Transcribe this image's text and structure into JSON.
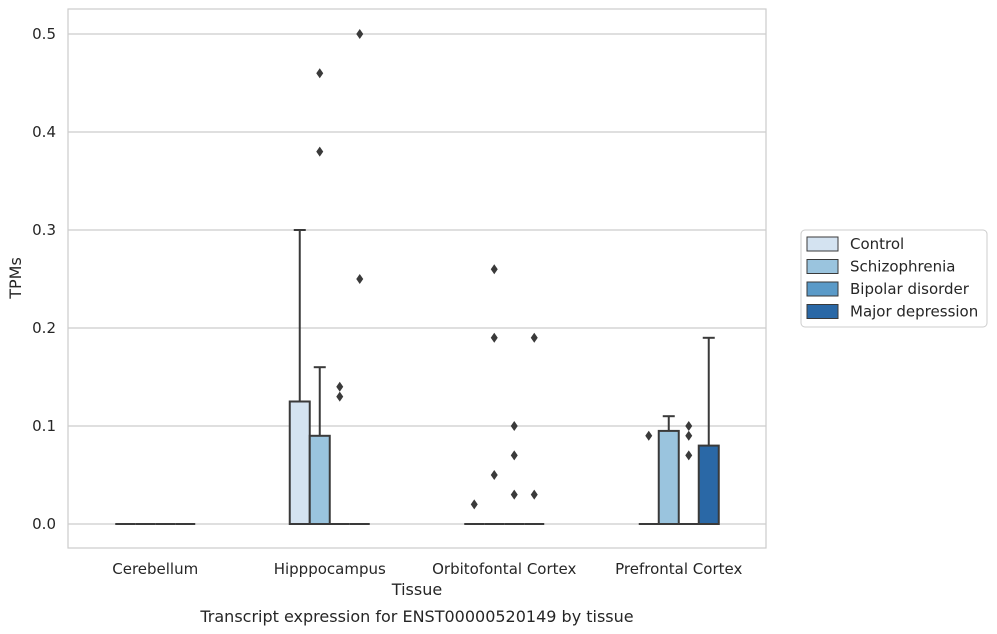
{
  "chart_data": {
    "type": "box",
    "caption": "Transcript expression for ENST00000520149 by tissue",
    "xlabel": "Tissue",
    "ylabel": "TPMs",
    "ylim": [
      -0.025,
      0.525
    ],
    "yticks": [
      0.0,
      0.1,
      0.2,
      0.3,
      0.4,
      0.5
    ],
    "ytick_labels": [
      "0.0",
      "0.1",
      "0.2",
      "0.3",
      "0.4",
      "0.5"
    ],
    "grid": "horizontal",
    "legend_position": "right",
    "categories": [
      "Cerebellum",
      "Hipppocampus",
      "Orbitofontal Cortex",
      "Prefrontal Cortex"
    ],
    "series": [
      {
        "name": "Control",
        "color": "#d4e3f1",
        "boxes": [
          {
            "q1": 0,
            "median": 0,
            "q3": 0,
            "whisker_low": 0,
            "whisker_high": 0,
            "outliers": []
          },
          {
            "q1": 0,
            "median": 0,
            "q3": 0.125,
            "whisker_low": 0,
            "whisker_high": 0.3,
            "outliers": []
          },
          {
            "q1": 0,
            "median": 0,
            "q3": 0,
            "whisker_low": 0,
            "whisker_high": 0,
            "outliers": [
              0.02
            ]
          },
          {
            "q1": 0,
            "median": 0,
            "q3": 0,
            "whisker_low": 0,
            "whisker_high": 0,
            "outliers": [
              0.09
            ]
          }
        ]
      },
      {
        "name": "Schizophrenia",
        "color": "#9ac4de",
        "boxes": [
          {
            "q1": 0,
            "median": 0,
            "q3": 0,
            "whisker_low": 0,
            "whisker_high": 0,
            "outliers": []
          },
          {
            "q1": 0,
            "median": 0,
            "q3": 0.09,
            "whisker_low": 0,
            "whisker_high": 0.16,
            "outliers": [
              0.46,
              0.38
            ]
          },
          {
            "q1": 0,
            "median": 0,
            "q3": 0,
            "whisker_low": 0,
            "whisker_high": 0,
            "outliers": [
              0.26,
              0.19,
              0.05
            ]
          },
          {
            "q1": 0,
            "median": 0,
            "q3": 0.095,
            "whisker_low": 0,
            "whisker_high": 0.11,
            "outliers": []
          }
        ]
      },
      {
        "name": "Bipolar disorder",
        "color": "#5a9ac8",
        "boxes": [
          {
            "q1": 0,
            "median": 0,
            "q3": 0,
            "whisker_low": 0,
            "whisker_high": 0,
            "outliers": []
          },
          {
            "q1": 0,
            "median": 0,
            "q3": 0,
            "whisker_low": 0,
            "whisker_high": 0,
            "outliers": [
              0.14,
              0.13
            ]
          },
          {
            "q1": 0,
            "median": 0,
            "q3": 0,
            "whisker_low": 0,
            "whisker_high": 0,
            "outliers": [
              0.1,
              0.07,
              0.03
            ]
          },
          {
            "q1": 0,
            "median": 0,
            "q3": 0,
            "whisker_low": 0,
            "whisker_high": 0,
            "outliers": [
              0.1,
              0.09,
              0.07
            ]
          }
        ]
      },
      {
        "name": "Major depression",
        "color": "#2a68a6",
        "boxes": [
          {
            "q1": 0,
            "median": 0,
            "q3": 0,
            "whisker_low": 0,
            "whisker_high": 0,
            "outliers": []
          },
          {
            "q1": 0,
            "median": 0,
            "q3": 0,
            "whisker_low": 0,
            "whisker_high": 0,
            "outliers": [
              0.5,
              0.25
            ]
          },
          {
            "q1": 0,
            "median": 0,
            "q3": 0,
            "whisker_low": 0,
            "whisker_high": 0,
            "outliers": [
              0.19,
              0.03
            ]
          },
          {
            "q1": 0,
            "median": 0,
            "q3": 0.08,
            "whisker_low": 0,
            "whisker_high": 0.19,
            "outliers": []
          }
        ]
      }
    ]
  }
}
